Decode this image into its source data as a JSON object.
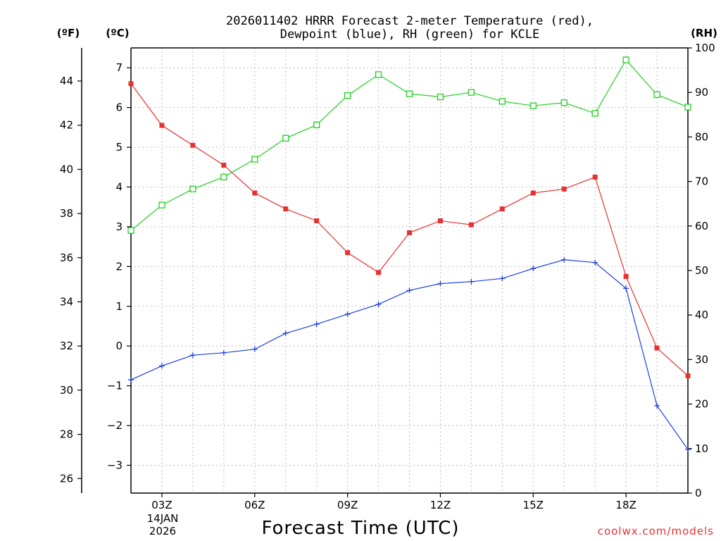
{
  "chart_data": {
    "type": "line",
    "title_line1": "2026011402 HRRR Forecast 2-meter Temperature (red),",
    "title_line2": "Dewpoint (blue), RH (green) for KCLE",
    "xlabel": "Forecast Time (UTC)",
    "credit": "coolwx.com/models",
    "left_outer_unit": "(ºF)",
    "left_inner_unit": "(ºC)",
    "right_unit": "(RH)",
    "date_line1": "14JAN",
    "date_line2": "2026",
    "x_hours": [
      2,
      3,
      4,
      5,
      6,
      7,
      8,
      9,
      10,
      11,
      12,
      13,
      14,
      15,
      16,
      17,
      18,
      19,
      20
    ],
    "xlim": [
      2,
      20
    ],
    "x_ticks": [
      {
        "hour": 3,
        "label": "03Z"
      },
      {
        "hour": 6,
        "label": "06Z"
      },
      {
        "hour": 9,
        "label": "09Z"
      },
      {
        "hour": 12,
        "label": "12Z"
      },
      {
        "hour": 15,
        "label": "15Z"
      },
      {
        "hour": 18,
        "label": "18Z"
      }
    ],
    "celsius_lim": [
      -3.7,
      7.5
    ],
    "celsius_ticks": [
      "-3",
      "-2",
      "-1",
      "0",
      "1",
      "2",
      "3",
      "4",
      "5",
      "6",
      "7"
    ],
    "fahrenheit_ticks": [
      "26",
      "28",
      "30",
      "32",
      "34",
      "36",
      "38",
      "40",
      "42",
      "44"
    ],
    "rh_lim": [
      0,
      100
    ],
    "rh_ticks": [
      "0",
      "10",
      "20",
      "30",
      "40",
      "50",
      "60",
      "70",
      "80",
      "90",
      "100"
    ],
    "series": [
      {
        "name": "Temperature",
        "units": "°C",
        "color": "#e83030",
        "marker": "filled-square",
        "values": [
          6.6,
          5.55,
          5.05,
          4.55,
          3.85,
          3.45,
          3.15,
          2.35,
          1.85,
          2.85,
          3.15,
          3.05,
          3.45,
          3.85,
          3.95,
          4.25,
          1.75,
          -0.05,
          -0.75
        ]
      },
      {
        "name": "Dewpoint",
        "units": "°C",
        "color": "#2040e0",
        "marker": "plus",
        "values": [
          -0.85,
          -0.5,
          -0.23,
          -0.17,
          -0.08,
          0.32,
          0.55,
          0.8,
          1.05,
          1.4,
          1.57,
          1.62,
          1.7,
          1.95,
          2.17,
          2.1,
          1.45,
          -1.5,
          -2.6
        ]
      },
      {
        "name": "RH",
        "units": "%",
        "color": "#20d020",
        "marker": "open-square",
        "values": [
          59,
          64.7,
          68.3,
          71,
          75,
          79.7,
          82.7,
          89.3,
          94,
          89.7,
          89,
          90,
          88,
          87,
          87.7,
          85.3,
          97.3,
          89.5,
          86.7
        ]
      }
    ],
    "grid": true,
    "grid_style": "dotted"
  }
}
